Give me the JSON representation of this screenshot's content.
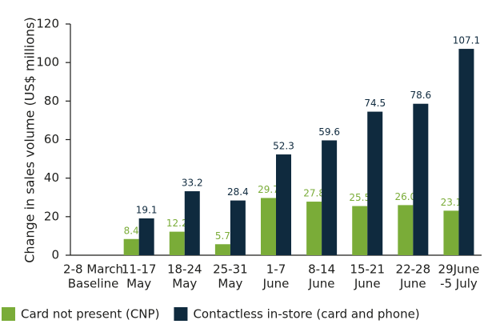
{
  "chart_data": {
    "type": "bar",
    "y_label": "Change in sales volume (US$ millions)",
    "categories": [
      [
        "2-8 March",
        "Baseline"
      ],
      [
        "11-17",
        "May"
      ],
      [
        "18-24",
        "May"
      ],
      [
        "25-31",
        "May"
      ],
      [
        "1-7",
        "June"
      ],
      [
        "8-14",
        "June"
      ],
      [
        "15-21",
        "June"
      ],
      [
        "22-28",
        "June"
      ],
      [
        "29June",
        "-5 July"
      ]
    ],
    "series": [
      {
        "name": "Card not present (CNP)",
        "color": "#7aac38",
        "values": [
          null,
          8.4,
          12.2,
          5.7,
          29.7,
          27.8,
          25.5,
          26.0,
          23.1
        ],
        "value_labels": [
          null,
          "8.4",
          "12.2",
          "5.7",
          "29.7",
          "27.8",
          "25.5",
          "26.0",
          "23.1"
        ]
      },
      {
        "name": "Contactless in-store (card and phone)",
        "color": "#0f2a3e",
        "values": [
          null,
          19.1,
          33.2,
          28.4,
          52.3,
          59.6,
          74.5,
          78.6,
          107.1
        ]
      }
    ],
    "ylim": [
      0,
      120
    ],
    "yticks": [
      0,
      20,
      40,
      60,
      80,
      100,
      120
    ],
    "legend": "bottom"
  }
}
